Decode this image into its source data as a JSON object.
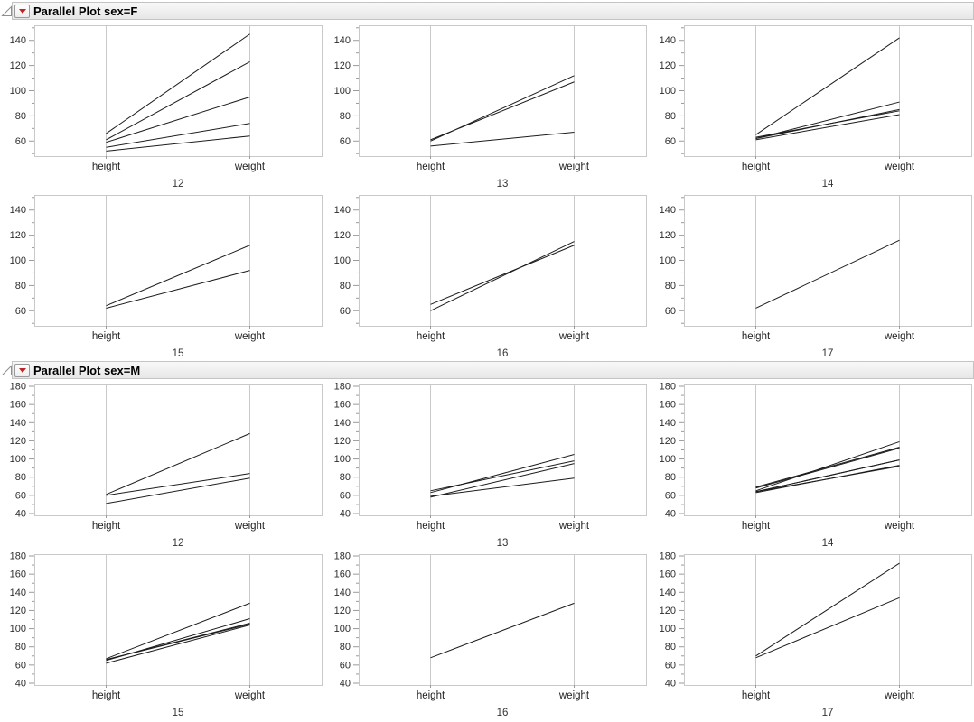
{
  "icons": {
    "disclosure": "open-right-triangle-icon",
    "menu": "red-triangle-down-icon"
  },
  "colors": {
    "frame": "#c9c9c9",
    "axis_line": "#c9c9c9",
    "tick": "#9a9a9a",
    "tick_label": "#2e2e2e",
    "axis_label": "#222222",
    "group_label": "#333333",
    "data_line": "#1c1c1c",
    "accent_red": "#c32222",
    "header_bg_top": "#f8f8f8",
    "header_bg_bottom": "#e7e7e7",
    "header_border": "#c4c4c4"
  },
  "chart_data": [
    {
      "type": "line",
      "subtype": "parallel-coordinates",
      "title": "Parallel Plot sex=F",
      "categories": [
        "height",
        "weight"
      ],
      "ylim": [
        48,
        152
      ],
      "yticks": [
        60,
        80,
        100,
        120,
        140
      ],
      "minor_tick_step": 10,
      "grid": false,
      "legend": "none",
      "panels": [
        {
          "group": "12",
          "lines": [
            [
              59,
              95
            ],
            [
              61,
              123
            ],
            [
              55,
              74
            ],
            [
              66,
              145
            ],
            [
              52,
              64
            ]
          ]
        },
        {
          "group": "13",
          "lines": [
            [
              60,
              112
            ],
            [
              61,
              107
            ],
            [
              56,
              67
            ]
          ]
        },
        {
          "group": "14",
          "lines": [
            [
              61,
              81
            ],
            [
              62,
              91
            ],
            [
              65,
              142
            ],
            [
              63,
              84
            ],
            [
              62,
              85
            ]
          ]
        },
        {
          "group": "15",
          "lines": [
            [
              62,
              92
            ],
            [
              64,
              112
            ]
          ]
        },
        {
          "group": "16",
          "lines": [
            [
              65,
              112
            ],
            [
              60,
              115
            ]
          ]
        },
        {
          "group": "17",
          "lines": [
            [
              62,
              116
            ]
          ]
        }
      ]
    },
    {
      "type": "line",
      "subtype": "parallel-coordinates",
      "title": "Parallel Plot sex=M",
      "categories": [
        "height",
        "weight"
      ],
      "ylim": [
        38,
        182
      ],
      "yticks": [
        40,
        60,
        80,
        100,
        120,
        140,
        160,
        180
      ],
      "minor_tick_step": 10,
      "grid": false,
      "legend": "none",
      "panels": [
        {
          "group": "12",
          "lines": [
            [
              60,
              84
            ],
            [
              61,
              128
            ],
            [
              51,
              79
            ]
          ]
        },
        {
          "group": "13",
          "lines": [
            [
              65,
              98
            ],
            [
              63,
              105
            ],
            [
              58,
              95
            ],
            [
              59,
              79
            ]
          ]
        },
        {
          "group": "14",
          "lines": [
            [
              63,
              93
            ],
            [
              64,
              99
            ],
            [
              65,
              119
            ],
            [
              64,
              92
            ],
            [
              68,
              112
            ],
            [
              64,
              99
            ],
            [
              69,
              113
            ]
          ]
        },
        {
          "group": "15",
          "lines": [
            [
              67,
              128
            ],
            [
              65,
              111
            ],
            [
              66,
              105
            ],
            [
              62,
              104
            ],
            [
              66,
              106
            ]
          ]
        },
        {
          "group": "16",
          "lines": [
            [
              68,
              128
            ]
          ]
        },
        {
          "group": "17",
          "lines": [
            [
              68,
              134
            ],
            [
              70,
              172
            ]
          ]
        }
      ]
    }
  ]
}
